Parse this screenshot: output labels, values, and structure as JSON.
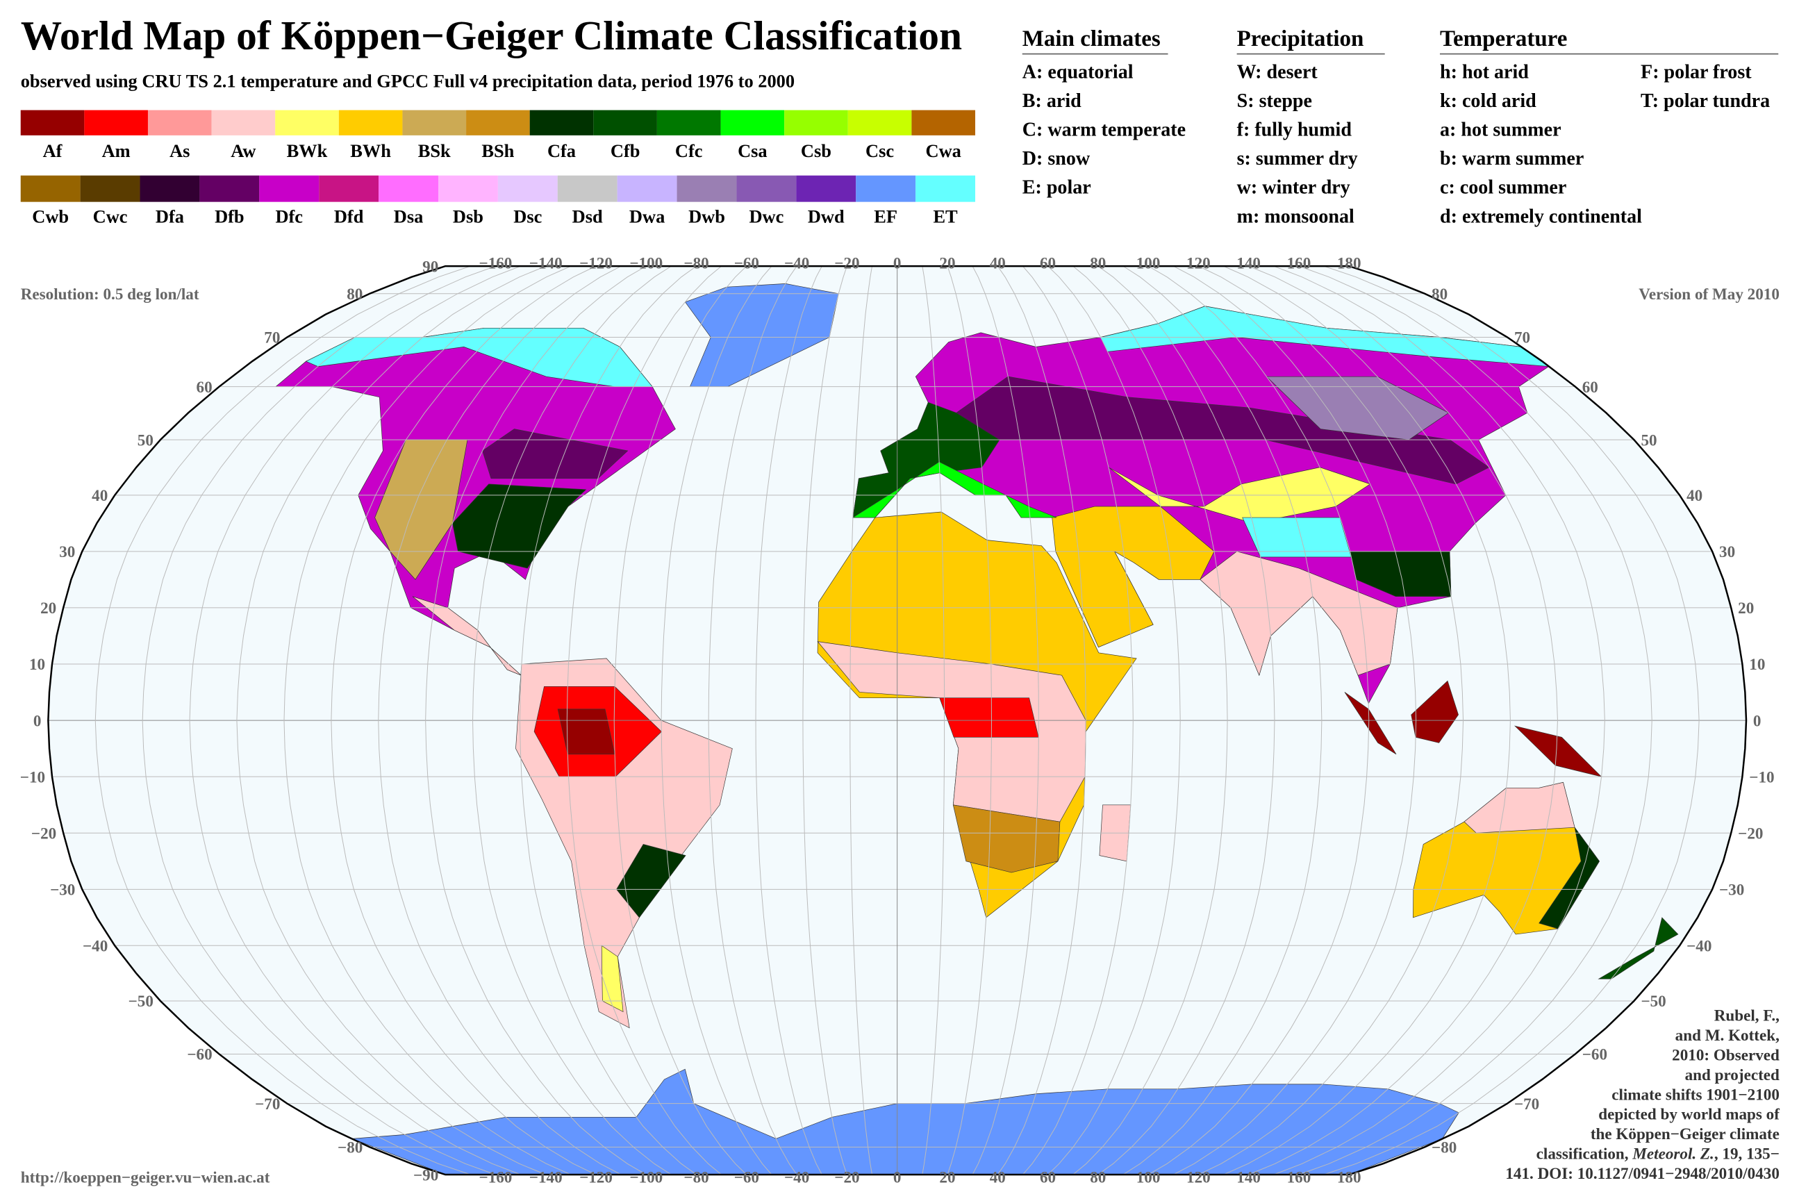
{
  "title": "World Map of Köppen−Geiger Climate Classification",
  "subtitle": "observed using CRU TS 2.1 temperature and GPCC Full v4 precipitation data, period 1976 to 2000",
  "legend": {
    "row1": [
      {
        "code": "Af",
        "color": "#960000"
      },
      {
        "code": "Am",
        "color": "#ff0000"
      },
      {
        "code": "As",
        "color": "#ff9999"
      },
      {
        "code": "Aw",
        "color": "#ffcccc"
      },
      {
        "code": "BWk",
        "color": "#ffff64"
      },
      {
        "code": "BWh",
        "color": "#ffcc00"
      },
      {
        "code": "BSk",
        "color": "#ccaa54"
      },
      {
        "code": "BSh",
        "color": "#cc8d14"
      },
      {
        "code": "Cfa",
        "color": "#003200"
      },
      {
        "code": "Cfb",
        "color": "#005000"
      },
      {
        "code": "Cfc",
        "color": "#007800"
      },
      {
        "code": "Csa",
        "color": "#00ff00"
      },
      {
        "code": "Csb",
        "color": "#96ff00"
      },
      {
        "code": "Csc",
        "color": "#c8ff00"
      },
      {
        "code": "Cwa",
        "color": "#b46400"
      }
    ],
    "row2": [
      {
        "code": "Cwb",
        "color": "#966400"
      },
      {
        "code": "Cwc",
        "color": "#5a3c00"
      },
      {
        "code": "Dfa",
        "color": "#320032"
      },
      {
        "code": "Dfb",
        "color": "#640064"
      },
      {
        "code": "Dfc",
        "color": "#c800c8"
      },
      {
        "code": "Dfd",
        "color": "#c81485"
      },
      {
        "code": "Dsa",
        "color": "#ff6dff"
      },
      {
        "code": "Dsb",
        "color": "#ffb4ff"
      },
      {
        "code": "Dsc",
        "color": "#e6c8ff"
      },
      {
        "code": "Dsd",
        "color": "#c8c8c8"
      },
      {
        "code": "Dwa",
        "color": "#c8b4ff"
      },
      {
        "code": "Dwb",
        "color": "#9a7fb3"
      },
      {
        "code": "Dwc",
        "color": "#8859b3"
      },
      {
        "code": "Dwd",
        "color": "#6d24b3"
      },
      {
        "code": "EF",
        "color": "#6496ff"
      },
      {
        "code": "ET",
        "color": "#64ffff"
      }
    ]
  },
  "key": {
    "main": {
      "heading": "Main climates",
      "items": [
        "A: equatorial",
        "B: arid",
        "C: warm temperate",
        "D: snow",
        "E: polar"
      ]
    },
    "precipitation": {
      "heading": "Precipitation",
      "items": [
        "W: desert",
        "S: steppe",
        "f: fully humid",
        "s: summer dry",
        "w: winter dry",
        "m: monsoonal"
      ]
    },
    "temperature": {
      "heading": "Temperature",
      "items": [
        "h: hot arid",
        "k: cold arid",
        "a: hot summer",
        "b: warm summer",
        "c: cool summer",
        "d: extremely continental",
        "F: polar frost",
        "T: polar tundra"
      ]
    }
  },
  "map": {
    "resolution": "Resolution: 0.5 deg lon/lat",
    "version": "Version of May 2010",
    "lat_labels": [
      "90",
      "80",
      "70",
      "60",
      "50",
      "40",
      "30",
      "20",
      "10",
      "0",
      "−10",
      "−20",
      "−30",
      "−40",
      "−50",
      "−60",
      "−70",
      "−80",
      "−90"
    ],
    "lon_labels": [
      "−160",
      "−140",
      "−120",
      "−100",
      "−80",
      "−60",
      "−40",
      "−20",
      "0",
      "20",
      "40",
      "60",
      "80",
      "100",
      "120",
      "140",
      "160",
      "180"
    ]
  },
  "url": "http://koeppen−geiger.vu−wien.ac.at",
  "citation": [
    "Rubel, F.,",
    "and M. Kottek,",
    "2010: Observed",
    "and projected",
    "climate shifts 1901−2100",
    "depicted by world maps of",
    "the Köppen−Geiger climate",
    [
      "classification, ",
      "Meteorol. Z.",
      ", ",
      "19",
      ", 135−"
    ],
    "141. DOI: 10.1127/0941−2948/2010/0430"
  ]
}
